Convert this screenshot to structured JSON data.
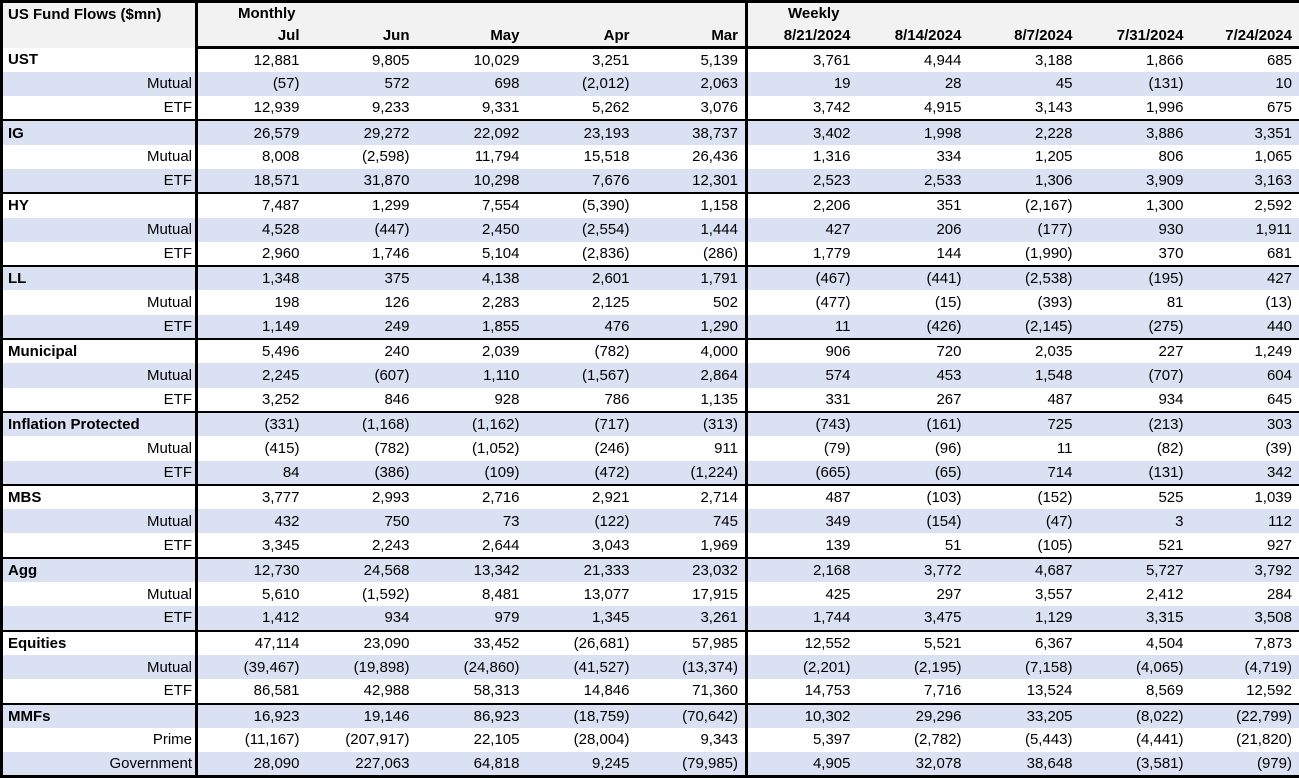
{
  "table": {
    "title": "US Fund Flows ($mn)",
    "colors": {
      "band": "#d9e1f2",
      "header_bg": "#f2f2f2",
      "border": "#000000"
    },
    "sections": [
      {
        "label": "Monthly",
        "columns": [
          "Jul",
          "Jun",
          "May",
          "Apr",
          "Mar"
        ]
      },
      {
        "label": "Weekly",
        "columns": [
          "8/21/2024",
          "8/14/2024",
          "8/7/2024",
          "7/31/2024",
          "7/24/2024"
        ]
      }
    ],
    "groups": [
      {
        "name": "UST",
        "rows": [
          {
            "label": "UST",
            "values": [
              "12,881",
              "9,805",
              "10,029",
              "3,251",
              "5,139",
              "3,761",
              "4,944",
              "3,188",
              "1,866",
              "685"
            ]
          },
          {
            "label": "Mutual",
            "values": [
              "(57)",
              "572",
              "698",
              "(2,012)",
              "2,063",
              "19",
              "28",
              "45",
              "(131)",
              "10"
            ]
          },
          {
            "label": "ETF",
            "values": [
              "12,939",
              "9,233",
              "9,331",
              "5,262",
              "3,076",
              "3,742",
              "4,915",
              "3,143",
              "1,996",
              "675"
            ]
          }
        ]
      },
      {
        "name": "IG",
        "rows": [
          {
            "label": "IG",
            "values": [
              "26,579",
              "29,272",
              "22,092",
              "23,193",
              "38,737",
              "3,402",
              "1,998",
              "2,228",
              "3,886",
              "3,351"
            ]
          },
          {
            "label": "Mutual",
            "values": [
              "8,008",
              "(2,598)",
              "11,794",
              "15,518",
              "26,436",
              "1,316",
              "334",
              "1,205",
              "806",
              "1,065"
            ]
          },
          {
            "label": "ETF",
            "values": [
              "18,571",
              "31,870",
              "10,298",
              "7,676",
              "12,301",
              "2,523",
              "2,533",
              "1,306",
              "3,909",
              "3,163"
            ]
          }
        ]
      },
      {
        "name": "HY",
        "rows": [
          {
            "label": "HY",
            "values": [
              "7,487",
              "1,299",
              "7,554",
              "(5,390)",
              "1,158",
              "2,206",
              "351",
              "(2,167)",
              "1,300",
              "2,592"
            ]
          },
          {
            "label": "Mutual",
            "values": [
              "4,528",
              "(447)",
              "2,450",
              "(2,554)",
              "1,444",
              "427",
              "206",
              "(177)",
              "930",
              "1,911"
            ]
          },
          {
            "label": "ETF",
            "values": [
              "2,960",
              "1,746",
              "5,104",
              "(2,836)",
              "(286)",
              "1,779",
              "144",
              "(1,990)",
              "370",
              "681"
            ]
          }
        ]
      },
      {
        "name": "LL",
        "rows": [
          {
            "label": "LL",
            "values": [
              "1,348",
              "375",
              "4,138",
              "2,601",
              "1,791",
              "(467)",
              "(441)",
              "(2,538)",
              "(195)",
              "427"
            ]
          },
          {
            "label": "Mutual",
            "values": [
              "198",
              "126",
              "2,283",
              "2,125",
              "502",
              "(477)",
              "(15)",
              "(393)",
              "81",
              "(13)"
            ]
          },
          {
            "label": "ETF",
            "values": [
              "1,149",
              "249",
              "1,855",
              "476",
              "1,290",
              "11",
              "(426)",
              "(2,145)",
              "(275)",
              "440"
            ]
          }
        ]
      },
      {
        "name": "Municipal",
        "rows": [
          {
            "label": "Municipal",
            "values": [
              "5,496",
              "240",
              "2,039",
              "(782)",
              "4,000",
              "906",
              "720",
              "2,035",
              "227",
              "1,249"
            ]
          },
          {
            "label": "Mutual",
            "values": [
              "2,245",
              "(607)",
              "1,110",
              "(1,567)",
              "2,864",
              "574",
              "453",
              "1,548",
              "(707)",
              "604"
            ]
          },
          {
            "label": "ETF",
            "values": [
              "3,252",
              "846",
              "928",
              "786",
              "1,135",
              "331",
              "267",
              "487",
              "934",
              "645"
            ]
          }
        ]
      },
      {
        "name": "Inflation Protected",
        "rows": [
          {
            "label": "Inflation Protected",
            "values": [
              "(331)",
              "(1,168)",
              "(1,162)",
              "(717)",
              "(313)",
              "(743)",
              "(161)",
              "725",
              "(213)",
              "303"
            ]
          },
          {
            "label": "Mutual",
            "values": [
              "(415)",
              "(782)",
              "(1,052)",
              "(246)",
              "911",
              "(79)",
              "(96)",
              "11",
              "(82)",
              "(39)"
            ]
          },
          {
            "label": "ETF",
            "values": [
              "84",
              "(386)",
              "(109)",
              "(472)",
              "(1,224)",
              "(665)",
              "(65)",
              "714",
              "(131)",
              "342"
            ]
          }
        ]
      },
      {
        "name": "MBS",
        "rows": [
          {
            "label": "MBS",
            "values": [
              "3,777",
              "2,993",
              "2,716",
              "2,921",
              "2,714",
              "487",
              "(103)",
              "(152)",
              "525",
              "1,039"
            ]
          },
          {
            "label": "Mutual",
            "values": [
              "432",
              "750",
              "73",
              "(122)",
              "745",
              "349",
              "(154)",
              "(47)",
              "3",
              "112"
            ]
          },
          {
            "label": "ETF",
            "values": [
              "3,345",
              "2,243",
              "2,644",
              "3,043",
              "1,969",
              "139",
              "51",
              "(105)",
              "521",
              "927"
            ]
          }
        ]
      },
      {
        "name": "Agg",
        "rows": [
          {
            "label": "Agg",
            "values": [
              "12,730",
              "24,568",
              "13,342",
              "21,333",
              "23,032",
              "2,168",
              "3,772",
              "4,687",
              "5,727",
              "3,792"
            ]
          },
          {
            "label": "Mutual",
            "values": [
              "5,610",
              "(1,592)",
              "8,481",
              "13,077",
              "17,915",
              "425",
              "297",
              "3,557",
              "2,412",
              "284"
            ]
          },
          {
            "label": "ETF",
            "values": [
              "1,412",
              "934",
              "979",
              "1,345",
              "3,261",
              "1,744",
              "3,475",
              "1,129",
              "3,315",
              "3,508"
            ]
          }
        ]
      },
      {
        "name": "Equities",
        "rows": [
          {
            "label": "Equities",
            "values": [
              "47,114",
              "23,090",
              "33,452",
              "(26,681)",
              "57,985",
              "12,552",
              "5,521",
              "6,367",
              "4,504",
              "7,873"
            ]
          },
          {
            "label": "Mutual",
            "values": [
              "(39,467)",
              "(19,898)",
              "(24,860)",
              "(41,527)",
              "(13,374)",
              "(2,201)",
              "(2,195)",
              "(7,158)",
              "(4,065)",
              "(4,719)"
            ]
          },
          {
            "label": "ETF",
            "values": [
              "86,581",
              "42,988",
              "58,313",
              "14,846",
              "71,360",
              "14,753",
              "7,716",
              "13,524",
              "8,569",
              "12,592"
            ]
          }
        ]
      },
      {
        "name": "MMFs",
        "rows": [
          {
            "label": "MMFs",
            "values": [
              "16,923",
              "19,146",
              "86,923",
              "(18,759)",
              "(70,642)",
              "10,302",
              "29,296",
              "33,205",
              "(8,022)",
              "(22,799)"
            ]
          },
          {
            "label": "Prime",
            "values": [
              "(11,167)",
              "(207,917)",
              "22,105",
              "(28,004)",
              "9,343",
              "5,397",
              "(2,782)",
              "(5,443)",
              "(4,441)",
              "(21,820)"
            ]
          },
          {
            "label": "Government",
            "values": [
              "28,090",
              "227,063",
              "64,818",
              "9,245",
              "(79,985)",
              "4,905",
              "32,078",
              "38,648",
              "(3,581)",
              "(979)"
            ]
          }
        ]
      }
    ]
  }
}
